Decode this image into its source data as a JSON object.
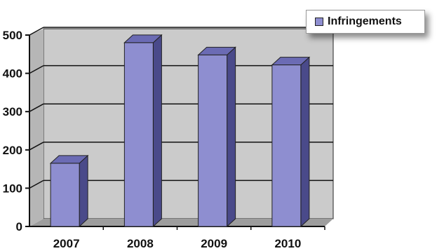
{
  "chart_data": {
    "type": "bar",
    "categories": [
      "2007",
      "2008",
      "2009",
      "2010"
    ],
    "series": [
      {
        "name": "Infringements",
        "values": [
          165,
          480,
          448,
          422
        ]
      }
    ],
    "title": "",
    "xlabel": "",
    "ylabel": "",
    "ylim": [
      0,
      500
    ],
    "yticks": [
      "0",
      "100",
      "200",
      "300",
      "400",
      "500"
    ],
    "grid": true,
    "legend": "top-right",
    "colors": {
      "bar_front": "#8e8ed0",
      "bar_side": "#4a4a8a",
      "bar_top": "#6b6bb4",
      "wall": "#c9c9c9",
      "floor": "#9a9a9a"
    }
  }
}
